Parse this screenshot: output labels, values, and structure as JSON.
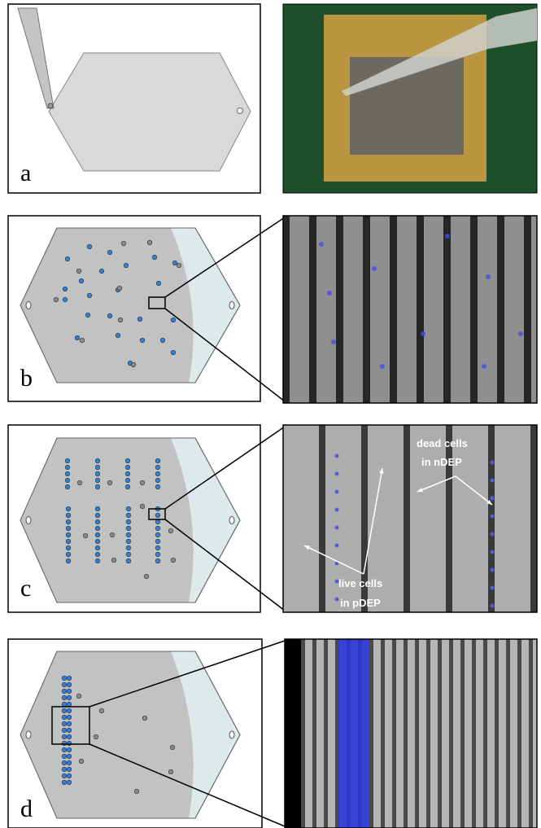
{
  "panels": [
    {
      "label": "a"
    },
    {
      "label": "b"
    },
    {
      "label": "c",
      "annotations": [
        "dead cells",
        "in nDEP",
        "live cells",
        "in pDEP"
      ]
    },
    {
      "label": "d"
    }
  ]
}
